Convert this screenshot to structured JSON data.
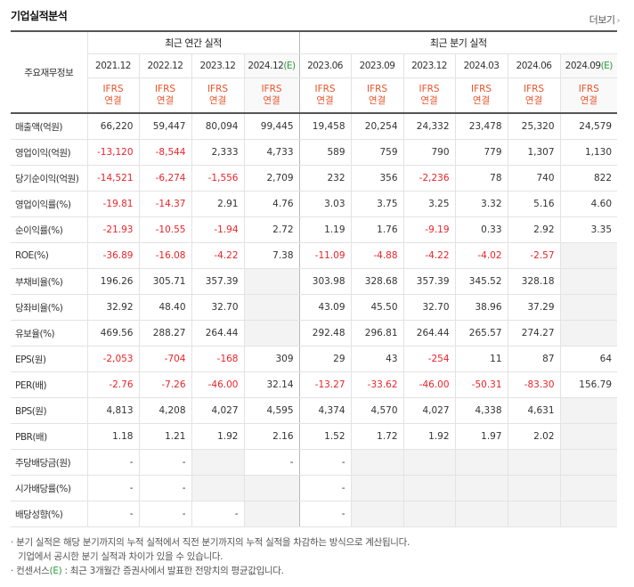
{
  "title": "기업실적분석",
  "more_label": "더보기",
  "header": {
    "row_label": "주요재무정보",
    "annual_group": "최근 연간 실적",
    "quarter_group": "최근 분기 실적",
    "annual_periods": [
      "2021.12",
      "2022.12",
      "2023.12",
      "2024.12"
    ],
    "quarter_periods": [
      "2023.06",
      "2023.09",
      "2023.12",
      "2024.03",
      "2024.06",
      "2024.09"
    ],
    "estimate_mark": "(E)",
    "ifrs_top": "IFRS",
    "ifrs_bottom": "연결"
  },
  "rows": [
    {
      "label": "매출액(억원)",
      "values": [
        "66,220",
        "59,447",
        "80,094",
        "99,445",
        "19,458",
        "20,254",
        "24,332",
        "23,478",
        "25,320",
        "24,579"
      ]
    },
    {
      "label": "영업이익(억원)",
      "values": [
        "-13,120",
        "-8,544",
        "2,333",
        "4,733",
        "589",
        "759",
        "790",
        "779",
        "1,307",
        "1,130"
      ]
    },
    {
      "label": "당기순이익(억원)",
      "values": [
        "-14,521",
        "-6,274",
        "-1,556",
        "2,709",
        "232",
        "356",
        "-2,236",
        "78",
        "740",
        "822"
      ]
    },
    {
      "label": "영업이익률(%)",
      "values": [
        "-19.81",
        "-14.37",
        "2.91",
        "4.76",
        "3.03",
        "3.75",
        "3.25",
        "3.32",
        "5.16",
        "4.60"
      ]
    },
    {
      "label": "순이익률(%)",
      "values": [
        "-21.93",
        "-10.55",
        "-1.94",
        "2.72",
        "1.19",
        "1.76",
        "-9.19",
        "0.33",
        "2.92",
        "3.35"
      ]
    },
    {
      "label": "ROE(%)",
      "values": [
        "-36.89",
        "-16.08",
        "-4.22",
        "7.38",
        "-11.09",
        "-4.88",
        "-4.22",
        "-4.02",
        "-2.57",
        ""
      ]
    },
    {
      "label": "부채비율(%)",
      "values": [
        "196.26",
        "305.71",
        "357.39",
        "",
        "303.98",
        "328.68",
        "357.39",
        "345.52",
        "328.18",
        ""
      ]
    },
    {
      "label": "당좌비율(%)",
      "values": [
        "32.92",
        "48.40",
        "32.70",
        "",
        "43.09",
        "45.50",
        "32.70",
        "38.96",
        "37.29",
        ""
      ]
    },
    {
      "label": "유보율(%)",
      "values": [
        "469.56",
        "288.27",
        "264.44",
        "",
        "292.48",
        "296.81",
        "264.44",
        "265.57",
        "274.27",
        ""
      ]
    },
    {
      "label": "EPS(원)",
      "values": [
        "-2,053",
        "-704",
        "-168",
        "309",
        "29",
        "43",
        "-254",
        "11",
        "87",
        "64"
      ]
    },
    {
      "label": "PER(배)",
      "values": [
        "-2.76",
        "-7.26",
        "-46.00",
        "32.14",
        "-13.27",
        "-33.62",
        "-46.00",
        "-50.31",
        "-83.30",
        "156.79"
      ]
    },
    {
      "label": "BPS(원)",
      "values": [
        "4,813",
        "4,208",
        "4,027",
        "4,595",
        "4,374",
        "4,570",
        "4,027",
        "4,338",
        "4,631",
        ""
      ]
    },
    {
      "label": "PBR(배)",
      "values": [
        "1.18",
        "1.21",
        "1.92",
        "2.16",
        "1.52",
        "1.72",
        "1.92",
        "1.97",
        "2.02",
        ""
      ]
    },
    {
      "label": "주당배당금(원)",
      "values": [
        "-",
        "-",
        "",
        "-",
        "-",
        "",
        "",
        "",
        "",
        ""
      ]
    },
    {
      "label": "시가배당률(%)",
      "values": [
        "-",
        "-",
        "",
        "",
        "-",
        "",
        "",
        "",
        "",
        ""
      ]
    },
    {
      "label": "배당성향(%)",
      "values": [
        "-",
        "-",
        "-",
        "",
        "-",
        "",
        "",
        "",
        "",
        ""
      ]
    }
  ],
  "notes": {
    "bullet": "·",
    "line1": "분기 실적은 해당 분기까지의 누적 실적에서 직전 분기까지의 누적 실적을 차감하는 방식으로 계산됩니다.",
    "line2": "기업에서 공시한 분기 실적과 차이가 있을 수 있습니다.",
    "line3_prefix": "컨센서스",
    "line3_mark": "(E)",
    "line3_suffix": ": 최근 3개월간 증권사에서 발표한 전망치의 평균값입니다."
  },
  "colors": {
    "negative": "#e9242a",
    "ifrs": "#e9542a",
    "estimate": "#2c9b3a"
  }
}
